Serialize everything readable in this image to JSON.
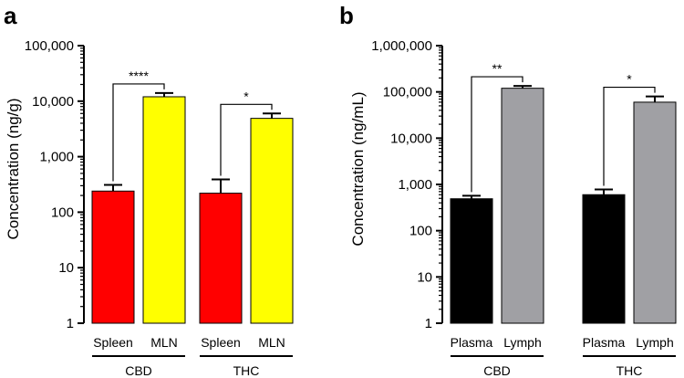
{
  "chart_data": [
    {
      "type": "bar",
      "panel": "a",
      "ylabel": "Concentration (ng/g)",
      "yscale": "log",
      "ylim": [
        1,
        100000
      ],
      "yticks": [
        "1",
        "10",
        "100",
        "1,000",
        "10,000",
        "100,000"
      ],
      "groups": [
        {
          "name": "CBD",
          "bars": [
            {
              "label": "Spleen",
              "value": 240,
              "error": 310,
              "color": "#ff0000"
            },
            {
              "label": "MLN",
              "value": 12000,
              "error": 14000,
              "color": "#ffff00"
            }
          ],
          "significance": "****"
        },
        {
          "name": "THC",
          "bars": [
            {
              "label": "Spleen",
              "value": 220,
              "error": 390,
              "color": "#ff0000"
            },
            {
              "label": "MLN",
              "value": 4900,
              "error": 6000,
              "color": "#ffff00"
            }
          ],
          "significance": "*"
        }
      ]
    },
    {
      "type": "bar",
      "panel": "b",
      "ylabel": "Concentration (ng/mL)",
      "yscale": "log",
      "ylim": [
        1,
        1000000
      ],
      "yticks": [
        "1",
        "10",
        "100",
        "1,000",
        "10,000",
        "100,000",
        "1,000,000"
      ],
      "groups": [
        {
          "name": "CBD",
          "bars": [
            {
              "label": "Plasma",
              "value": 490,
              "error": 570,
              "color": "#000000"
            },
            {
              "label": "Lymph",
              "value": 120000,
              "error": 135000,
              "color": "#a0a0a4"
            }
          ],
          "significance": "**"
        },
        {
          "name": "THC",
          "bars": [
            {
              "label": "Plasma",
              "value": 600,
              "error": 780,
              "color": "#000000"
            },
            {
              "label": "Lymph",
              "value": 60000,
              "error": 80000,
              "color": "#a0a0a4"
            }
          ],
          "significance": "*"
        }
      ]
    }
  ]
}
